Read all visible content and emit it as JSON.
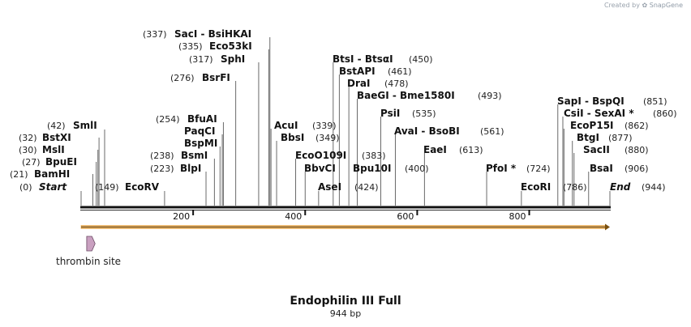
{
  "credit": {
    "created_by": "Created by",
    "brand": "SnapGene"
  },
  "map": {
    "title": "Endophilin III Full",
    "length_label": "944 bp",
    "length_bp": 944,
    "ticks": [
      "200",
      "400",
      "600",
      "800"
    ],
    "tick_values": [
      200,
      400,
      600,
      800
    ],
    "features": [
      {
        "label": "thrombin site",
        "start": 10,
        "end": 25,
        "color": "#c9a0c0"
      }
    ],
    "sites": [
      {
        "pos": "(0)",
        "name": "Start",
        "loc": 0,
        "italic": true
      },
      {
        "pos": "(21)",
        "name": "BamHI",
        "loc": 21
      },
      {
        "pos": "(27)",
        "name": "BpuEI",
        "loc": 27
      },
      {
        "pos": "(30)",
        "name": "MslI",
        "loc": 30
      },
      {
        "pos": "(32)",
        "name": "BstXI",
        "loc": 32
      },
      {
        "pos": "(42)",
        "name": "SmlI",
        "loc": 42
      },
      {
        "pos": "(149)",
        "name": "EcoRV",
        "loc": 149
      },
      {
        "pos": "(223)",
        "name": "BlpI",
        "loc": 223
      },
      {
        "pos": "(238)",
        "name": "BsmI",
        "loc": 238
      },
      {
        "name": "BspMI",
        "loc": 248
      },
      {
        "name": "PaqCI",
        "loc": 252
      },
      {
        "pos": "(254)",
        "name": "BfuAI",
        "loc": 254
      },
      {
        "pos": "(276)",
        "name": "BsrFI",
        "loc": 276
      },
      {
        "pos": "(317)",
        "name": "SphI",
        "loc": 317
      },
      {
        "pos": "(335)",
        "name": "Eco53kI",
        "loc": 335
      },
      {
        "pos": "(337)",
        "name": "SacI - BsiHKAI",
        "loc": 337
      },
      {
        "name": "AcuI",
        "loc": 339
      },
      {
        "pos": "(349)",
        "name": "BbsI",
        "loc": 349
      },
      {
        "pos": "(339)",
        "name": "",
        "loc": 339
      },
      {
        "pos": "(383)",
        "name": "EcoO109I",
        "loc": 383
      },
      {
        "name": "BbvCI",
        "loc": 400
      },
      {
        "pos": "(424)",
        "name": "AseI",
        "loc": 424
      },
      {
        "name": "Bpu10I",
        "loc": 400
      },
      {
        "pos": "(400)",
        "name": "",
        "loc": 400
      },
      {
        "pos": "(450)",
        "name": "BtsI - BtsαI",
        "loc": 450
      },
      {
        "pos": "(461)",
        "name": "BstAPI",
        "loc": 461
      },
      {
        "pos": "(478)",
        "name": "DraI",
        "loc": 478
      },
      {
        "pos": "(493)",
        "name": "BaeGI - Bme1580I",
        "loc": 493
      },
      {
        "pos": "(535)",
        "name": "PsiI",
        "loc": 535
      },
      {
        "pos": "(561)",
        "name": "AvaI - BsoBI",
        "loc": 561
      },
      {
        "pos": "(613)",
        "name": "EaeI",
        "loc": 613
      },
      {
        "pos": "(724)",
        "name": "PfoI *",
        "loc": 724
      },
      {
        "pos": "(786)",
        "name": "EcoRI",
        "loc": 786
      },
      {
        "pos": "(851)",
        "name": "SapI - BspQI",
        "loc": 851
      },
      {
        "pos": "(860)",
        "name": "CsiI - SexAI *",
        "loc": 860
      },
      {
        "pos": "(862)",
        "name": "EcoP15I",
        "loc": 862
      },
      {
        "pos": "(877)",
        "name": "BtgI",
        "loc": 877
      },
      {
        "pos": "(880)",
        "name": "SacII",
        "loc": 880
      },
      {
        "pos": "(906)",
        "name": "BsaI",
        "loc": 906
      },
      {
        "pos": "(944)",
        "name": "End",
        "loc": 944,
        "italic": true
      }
    ]
  }
}
